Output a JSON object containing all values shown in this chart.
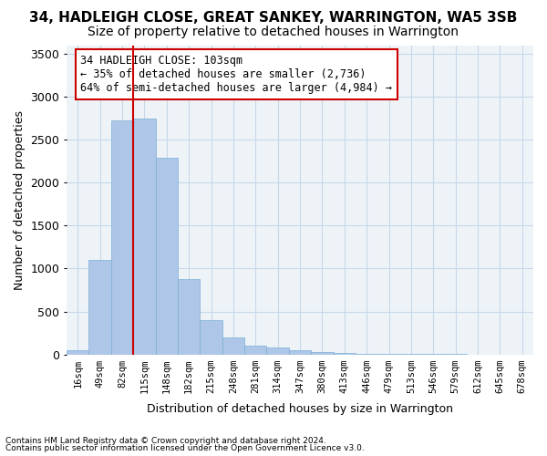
{
  "title1": "34, HADLEIGH CLOSE, GREAT SANKEY, WARRINGTON, WA5 3SB",
  "title2": "Size of property relative to detached houses in Warrington",
  "xlabel": "Distribution of detached houses by size in Warrington",
  "ylabel": "Number of detached properties",
  "footer1": "Contains HM Land Registry data © Crown copyright and database right 2024.",
  "footer2": "Contains public sector information licensed under the Open Government Licence v3.0.",
  "annotation_title": "34 HADLEIGH CLOSE: 103sqm",
  "annotation_line2": "← 35% of detached houses are smaller (2,736)",
  "annotation_line3": "64% of semi-detached houses are larger (4,984) →",
  "bar_values": [
    50,
    1100,
    2730,
    2750,
    2290,
    880,
    400,
    195,
    100,
    85,
    50,
    30,
    20,
    10,
    5,
    3,
    2,
    1,
    0,
    0,
    0
  ],
  "bar_labels": [
    "16sqm",
    "49sqm",
    "82sqm",
    "115sqm",
    "148sqm",
    "182sqm",
    "215sqm",
    "248sqm",
    "281sqm",
    "314sqm",
    "347sqm",
    "380sqm",
    "413sqm",
    "446sqm",
    "479sqm",
    "513sqm",
    "546sqm",
    "579sqm",
    "612sqm",
    "645sqm",
    "678sqm"
  ],
  "bar_color": "#aec6e8",
  "bar_edge_color": "#7bafd4",
  "grid_color": "#c8d8e8",
  "background_color": "#eef3f8",
  "vline_color": "#cc0000",
  "annotation_box_color": "#cc0000",
  "ylim": [
    0,
    3600
  ],
  "yticks": [
    0,
    500,
    1000,
    1500,
    2000,
    2500,
    3000,
    3500
  ],
  "title1_fontsize": 11,
  "title2_fontsize": 10,
  "xlabel_fontsize": 9,
  "ylabel_fontsize": 9,
  "annotation_fontsize": 8.5,
  "footer_fontsize": 6.5,
  "tick_fontsize": 7.5,
  "vline_pos": 2.5
}
